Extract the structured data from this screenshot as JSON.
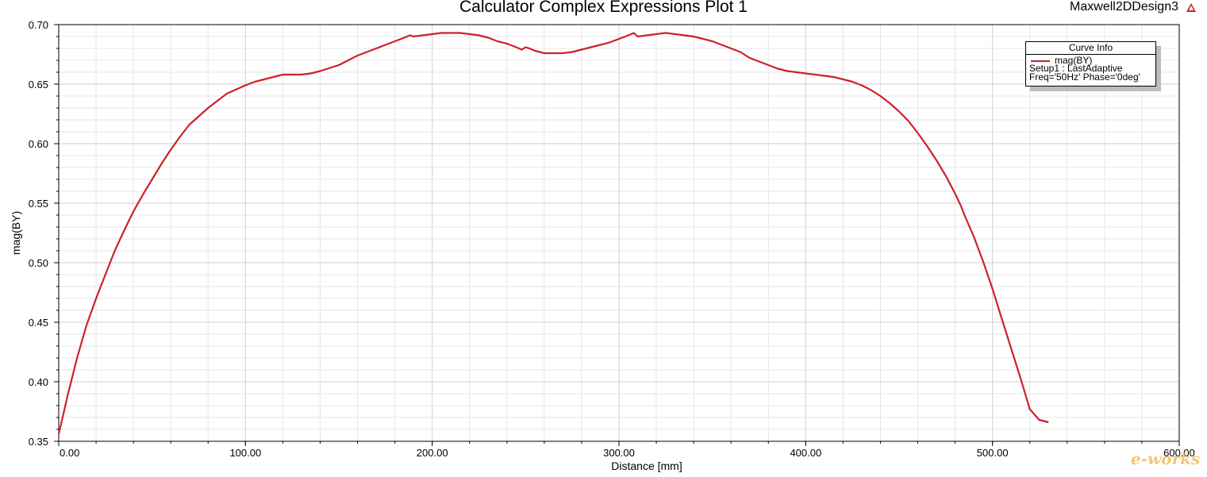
{
  "header": {
    "title": "Calculator Complex Expressions Plot 1",
    "design_name": "Maxwell2DDesign3",
    "design_icon": "warning-triangle-icon"
  },
  "legend": {
    "title": "Curve Info",
    "entries": [
      {
        "name": "mag(BY)",
        "color": "#cc2229",
        "line1": "Setup1 : LastAdaptive",
        "line2": "Freq='50Hz' Phase='0deg'"
      }
    ]
  },
  "watermark": {
    "text": "e-works"
  },
  "chart_data": {
    "type": "line",
    "title": "Calculator Complex Expressions Plot 1",
    "xlabel": "Distance [mm]",
    "ylabel": "mag(BY)",
    "xlim": [
      0,
      600
    ],
    "ylim": [
      0.35,
      0.7
    ],
    "xticks": [
      "0.00",
      "100.00",
      "200.00",
      "300.00",
      "400.00",
      "500.00",
      "600.00"
    ],
    "yticks": [
      "0.35",
      "0.40",
      "0.45",
      "0.50",
      "0.55",
      "0.60",
      "0.65",
      "0.70"
    ],
    "grid": true,
    "legend_position": "top-right",
    "series": [
      {
        "name": "mag(BY)",
        "color": "#cc2229",
        "x": [
          0,
          5,
          10,
          15,
          20,
          25,
          30,
          35,
          40,
          45,
          50,
          55,
          60,
          65,
          70,
          75,
          80,
          90,
          100,
          105,
          110,
          115,
          120,
          130,
          135,
          140,
          150,
          155,
          160,
          165,
          170,
          175,
          180,
          185,
          188,
          190,
          195,
          200,
          205,
          210,
          215,
          220,
          225,
          230,
          235,
          240,
          245,
          248,
          250,
          252,
          255,
          260,
          262,
          265,
          270,
          275,
          280,
          285,
          290,
          295,
          300,
          305,
          308,
          310,
          315,
          320,
          325,
          330,
          335,
          340,
          345,
          350,
          355,
          360,
          365,
          370,
          375,
          380,
          385,
          390,
          395,
          400,
          405,
          410,
          415,
          420,
          425,
          430,
          435,
          440,
          445,
          450,
          455,
          460,
          465,
          470,
          475,
          480,
          483,
          485,
          490,
          495,
          500,
          505,
          510,
          515,
          520,
          525,
          530
        ],
        "y": [
          0.356,
          0.39,
          0.421,
          0.448,
          0.47,
          0.49,
          0.51,
          0.527,
          0.543,
          0.557,
          0.57,
          0.583,
          0.595,
          0.606,
          0.616,
          0.623,
          0.63,
          0.642,
          0.649,
          0.652,
          0.654,
          0.656,
          0.658,
          0.658,
          0.659,
          0.661,
          0.666,
          0.67,
          0.674,
          0.677,
          0.68,
          0.683,
          0.686,
          0.689,
          0.691,
          0.69,
          0.691,
          0.692,
          0.693,
          0.693,
          0.693,
          0.692,
          0.691,
          0.689,
          0.686,
          0.684,
          0.681,
          0.679,
          0.681,
          0.68,
          0.678,
          0.676,
          0.676,
          0.676,
          0.676,
          0.677,
          0.679,
          0.681,
          0.683,
          0.685,
          0.688,
          0.691,
          0.693,
          0.69,
          0.691,
          0.692,
          0.693,
          0.692,
          0.691,
          0.69,
          0.688,
          0.686,
          0.683,
          0.68,
          0.677,
          0.672,
          0.669,
          0.666,
          0.663,
          0.661,
          0.66,
          0.659,
          0.658,
          0.657,
          0.656,
          0.654,
          0.652,
          0.649,
          0.645,
          0.64,
          0.634,
          0.627,
          0.619,
          0.609,
          0.598,
          0.586,
          0.573,
          0.558,
          0.548,
          0.54,
          0.522,
          0.501,
          0.478,
          0.453,
          0.428,
          0.403,
          0.377,
          0.368,
          0.366
        ]
      }
    ]
  }
}
